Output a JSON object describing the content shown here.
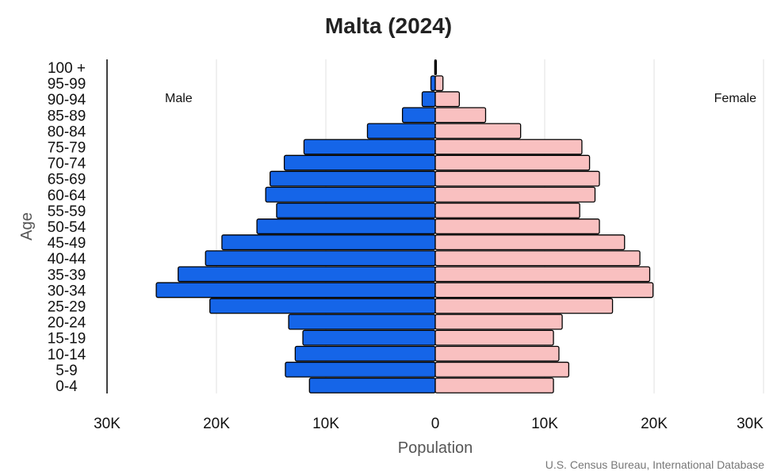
{
  "chart_data": {
    "type": "bar",
    "title": "Malta (2024)",
    "xlabel": "Population",
    "ylabel": "Age",
    "categories": [
      "100 +",
      "95-99",
      "90-94",
      "85-89",
      "80-84",
      "75-79",
      "70-74",
      "65-69",
      "60-64",
      "55-59",
      "50-54",
      "45-49",
      "40-44",
      "35-39",
      "30-34",
      "25-29",
      "20-24",
      "15-19",
      "10-14",
      "5-9",
      "0-4"
    ],
    "series": [
      {
        "name": "Male",
        "color": "#1565e8",
        "values": [
          50,
          400,
          1200,
          3000,
          6200,
          12000,
          13800,
          15100,
          15500,
          14500,
          16300,
          19500,
          21000,
          23500,
          25500,
          20600,
          13400,
          12100,
          12800,
          13700,
          11500
        ]
      },
      {
        "name": "Female",
        "color": "#f9c0c0",
        "values": [
          100,
          700,
          2200,
          4600,
          7800,
          13400,
          14100,
          15000,
          14600,
          13200,
          15000,
          17300,
          18700,
          19600,
          19900,
          16200,
          11600,
          10800,
          11300,
          12200,
          10800
        ]
      }
    ],
    "xlim": [
      -30000,
      30000
    ],
    "xticks": [
      {
        "value": -30000,
        "label": "30K"
      },
      {
        "value": -20000,
        "label": "20K"
      },
      {
        "value": -10000,
        "label": "10K"
      },
      {
        "value": 0,
        "label": "0"
      },
      {
        "value": 10000,
        "label": "10K"
      },
      {
        "value": 20000,
        "label": "20K"
      },
      {
        "value": 30000,
        "label": "30K"
      }
    ],
    "grid": true,
    "source": "U.S. Census Bureau, International Database"
  }
}
